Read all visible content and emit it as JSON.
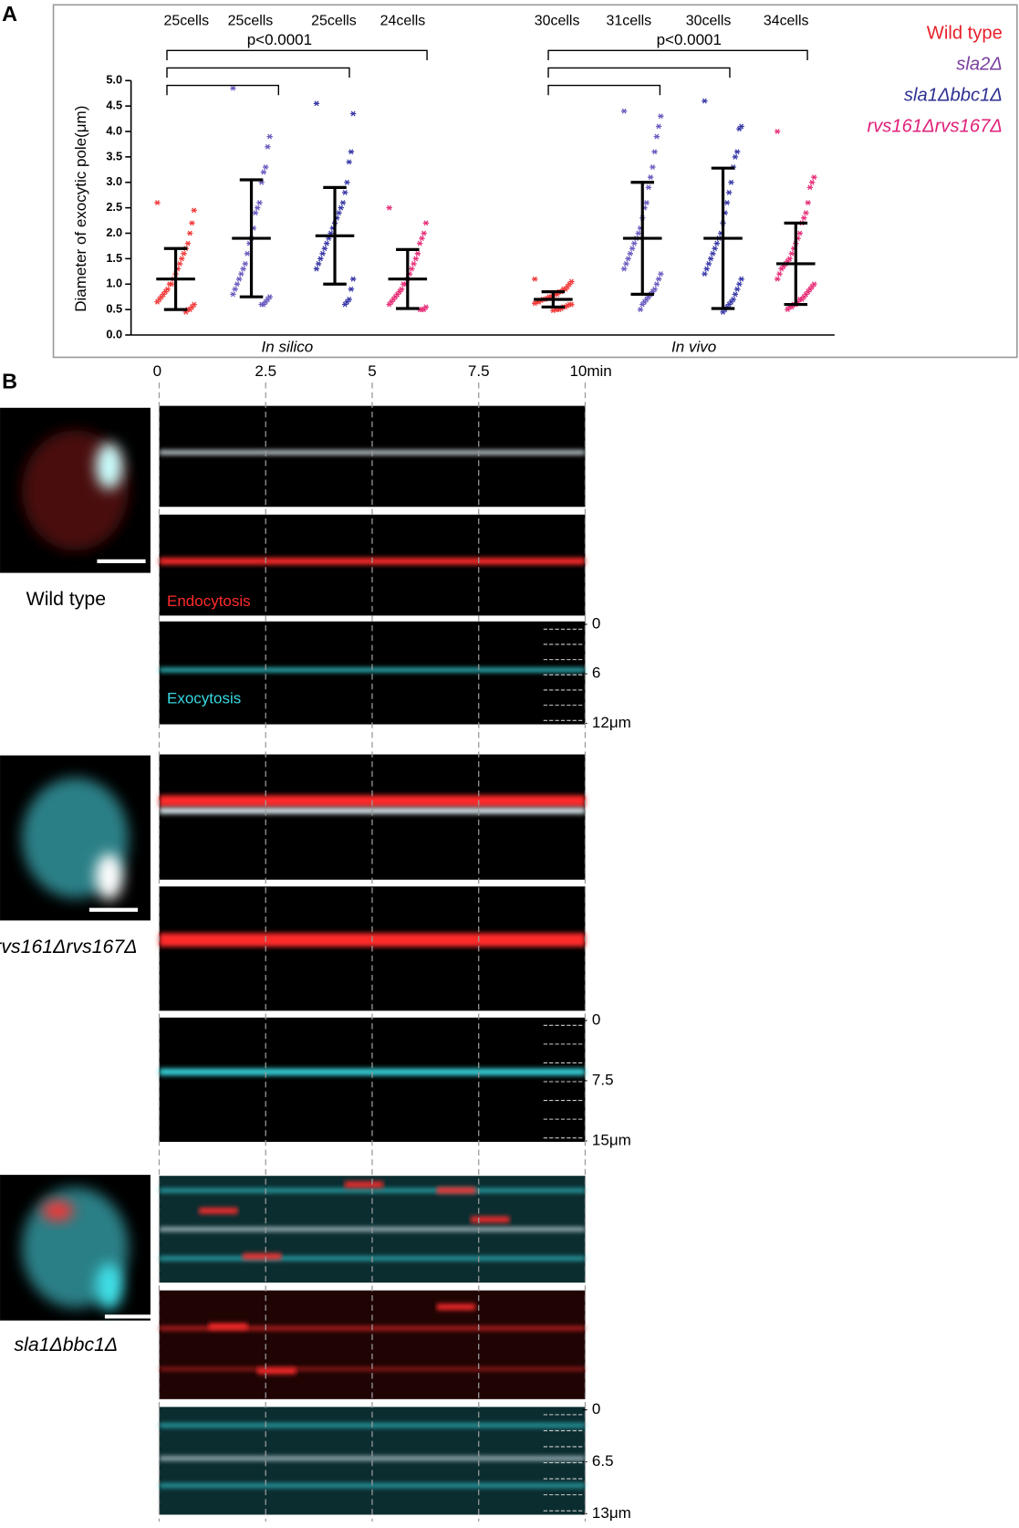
{
  "chart_data": {
    "type": "dot",
    "panel_label": "A",
    "ylabel": "Diameter of exocytic pole(μm)",
    "ylim": [
      0,
      5
    ],
    "yticks": [
      {
        "value": 0,
        "label": "0.0"
      },
      {
        "value": 0.5,
        "label": "0.5"
      },
      {
        "value": 1,
        "label": "1.0"
      },
      {
        "value": 1.5,
        "label": "1.5"
      },
      {
        "value": 2,
        "label": "2.0"
      },
      {
        "value": 2.5,
        "label": "2.5"
      },
      {
        "value": 3,
        "label": "3.0"
      },
      {
        "value": 3.5,
        "label": "3.5"
      },
      {
        "value": 4,
        "label": "4.0"
      },
      {
        "value": 4.5,
        "label": "4.5"
      },
      {
        "value": 5,
        "label": "5.0"
      }
    ],
    "legend": [
      {
        "name": "Wild type",
        "color": "#e8202a"
      },
      {
        "name": "sla2Δ",
        "color": "#7b3fa0"
      },
      {
        "name": "sla1Δbbc1Δ",
        "color": "#2e3192"
      },
      {
        "name": "rvs161Δrvs167Δ",
        "color": "#e0207a"
      }
    ],
    "conditions": [
      {
        "label": "In silico",
        "comparison": "p<0.0001"
      },
      {
        "label": "In vivo",
        "comparison": "p<0.0001"
      }
    ],
    "groups": [
      {
        "label": "25cells",
        "color": "#f03c3c",
        "mean": 1.1,
        "sd": 0.6,
        "values": [
          2.6,
          2.45,
          2.2,
          2.0,
          1.8,
          1.7,
          1.6,
          1.5,
          1.4,
          1.3,
          1.2,
          1.1,
          1.0,
          1.0,
          0.9,
          0.85,
          0.8,
          0.75,
          0.7,
          0.65,
          0.6,
          0.55,
          0.5,
          0.5,
          0.45
        ]
      },
      {
        "label": "25cells",
        "color": "#6a5cc0",
        "mean": 1.9,
        "sd": 1.15,
        "values": [
          4.85,
          3.9,
          3.7,
          3.3,
          3.2,
          3.0,
          2.6,
          2.5,
          2.4,
          2.1,
          1.9,
          1.8,
          1.6,
          1.4,
          1.3,
          1.2,
          1.1,
          1.0,
          0.9,
          0.8,
          0.75,
          0.7,
          0.65,
          0.6,
          0.6
        ]
      },
      {
        "label": "25cells",
        "color": "#3a3aa8",
        "mean": 1.95,
        "sd": 0.95,
        "values": [
          4.55,
          4.35,
          3.6,
          3.4,
          3.0,
          2.8,
          2.6,
          2.5,
          2.4,
          2.3,
          2.2,
          2.1,
          2.0,
          1.9,
          1.8,
          1.7,
          1.6,
          1.5,
          1.4,
          1.3,
          1.1,
          0.9,
          0.7,
          0.65,
          0.6
        ]
      },
      {
        "label": "24cells",
        "color": "#e8307a",
        "mean": 1.1,
        "sd": 0.58,
        "values": [
          2.5,
          2.2,
          2.0,
          1.9,
          1.8,
          1.6,
          1.5,
          1.4,
          1.3,
          1.2,
          1.1,
          1.0,
          1.0,
          0.9,
          0.85,
          0.8,
          0.75,
          0.7,
          0.65,
          0.6,
          0.55,
          0.5,
          0.5,
          0.5
        ]
      },
      {
        "label": "30cells",
        "color": "#f03c3c",
        "mean": 0.7,
        "sd": 0.15,
        "values": [
          1.1,
          1.05,
          1.0,
          0.95,
          0.9,
          0.9,
          0.85,
          0.85,
          0.8,
          0.8,
          0.78,
          0.75,
          0.75,
          0.72,
          0.7,
          0.7,
          0.68,
          0.65,
          0.65,
          0.62,
          0.6,
          0.6,
          0.58,
          0.55,
          0.55,
          0.52,
          0.5,
          0.5,
          0.5,
          0.48
        ]
      },
      {
        "label": "31cells",
        "color": "#6a5cc0",
        "mean": 1.9,
        "sd": 1.1,
        "values": [
          4.4,
          4.3,
          4.1,
          3.9,
          3.6,
          3.3,
          3.1,
          2.9,
          2.6,
          2.5,
          2.3,
          2.1,
          2.0,
          1.9,
          1.8,
          1.7,
          1.6,
          1.5,
          1.4,
          1.3,
          1.2,
          1.1,
          1.0,
          0.9,
          0.85,
          0.8,
          0.75,
          0.7,
          0.65,
          0.6,
          0.5
        ]
      },
      {
        "label": "30cells",
        "color": "#3a3aa8",
        "mean": 1.9,
        "sd": 1.38,
        "values": [
          4.6,
          4.1,
          4.05,
          3.6,
          3.5,
          3.3,
          3.0,
          2.8,
          2.6,
          2.4,
          2.2,
          2.0,
          1.9,
          1.8,
          1.7,
          1.6,
          1.5,
          1.4,
          1.3,
          1.2,
          1.1,
          1.0,
          0.9,
          0.8,
          0.7,
          0.65,
          0.6,
          0.55,
          0.5,
          0.45
        ]
      },
      {
        "label": "34cells",
        "color": "#e8307a",
        "mean": 1.4,
        "sd": 0.8,
        "values": [
          4.0,
          3.1,
          3.0,
          2.9,
          2.6,
          2.4,
          2.3,
          2.2,
          2.0,
          1.9,
          1.8,
          1.7,
          1.6,
          1.5,
          1.45,
          1.4,
          1.35,
          1.3,
          1.2,
          1.1,
          1.0,
          0.95,
          0.9,
          0.85,
          0.8,
          0.75,
          0.7,
          0.7,
          0.65,
          0.6,
          0.6,
          0.55,
          0.55,
          0.5
        ]
      }
    ]
  },
  "panel_b": {
    "panel_label": "B",
    "time_ticks": [
      0,
      2.5,
      5,
      7.5,
      {
        "value": 10,
        "label": "10min"
      }
    ],
    "channels": [
      "Endocytosis",
      "Exocytosis"
    ],
    "rows": [
      {
        "label": "Wild type",
        "space_ticks": [
          0,
          6,
          {
            "value": 12,
            "label": "12μm"
          }
        ]
      },
      {
        "label": "rvs161Δrvs167Δ",
        "space_ticks": [
          0,
          7.5,
          {
            "value": 15,
            "label": "15μm"
          }
        ]
      },
      {
        "label": "sla1Δbbc1Δ",
        "space_ticks": [
          0,
          6.5,
          {
            "value": 13,
            "label": "13μm"
          }
        ]
      }
    ]
  }
}
